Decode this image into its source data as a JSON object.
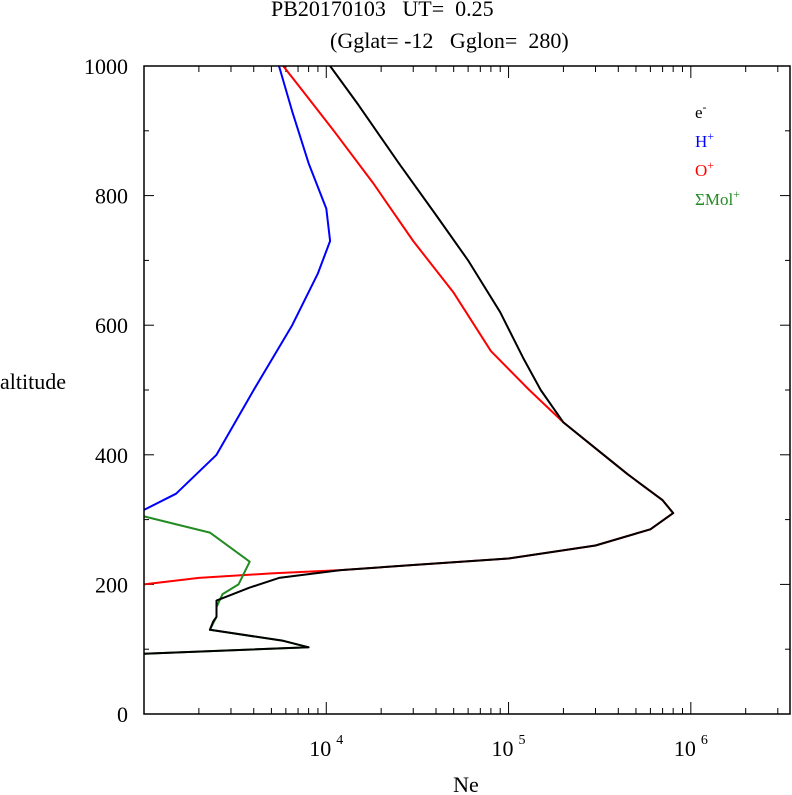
{
  "title": {
    "line1": "PB20170103   UT=  0.25",
    "line2": "(Gglat= -12   Gglon=  280)"
  },
  "chart_data": {
    "type": "line",
    "xlabel": "Ne",
    "ylabel": "altitude",
    "xscale": "log",
    "xlim": [
      1000,
      3500000
    ],
    "ylim": [
      0,
      1000
    ],
    "yticks": [
      0,
      200,
      400,
      600,
      800,
      1000
    ],
    "ytick_labels": [
      "0",
      "200",
      "400",
      "600",
      "800",
      "1000"
    ],
    "xticks": [
      {
        "value": 10000,
        "base": "10",
        "exp": "4"
      },
      {
        "value": 100000,
        "base": "10",
        "exp": "5"
      },
      {
        "value": 1000000,
        "base": "10",
        "exp": "6"
      }
    ],
    "legend_position": "top-right",
    "series": [
      {
        "name": "e-",
        "label": "e",
        "sup": "-",
        "color": "#000000",
        "points": [
          [
            1000,
            93
          ],
          [
            8000,
            103
          ],
          [
            5800,
            113
          ],
          [
            2300,
            130
          ],
          [
            2400,
            143
          ],
          [
            2500,
            150
          ],
          [
            2500,
            175
          ],
          [
            3800,
            195
          ],
          [
            5500,
            210
          ],
          [
            12000,
            222
          ],
          [
            30000,
            230
          ],
          [
            100000,
            240
          ],
          [
            300000,
            260
          ],
          [
            600000,
            285
          ],
          [
            800000,
            310
          ],
          [
            700000,
            330
          ],
          [
            450000,
            370
          ],
          [
            300000,
            410
          ],
          [
            200000,
            450
          ],
          [
            150000,
            500
          ],
          [
            120000,
            550
          ],
          [
            90000,
            620
          ],
          [
            60000,
            700
          ],
          [
            40000,
            770
          ],
          [
            25000,
            850
          ],
          [
            15000,
            940
          ],
          [
            10500,
            1000
          ]
        ]
      },
      {
        "name": "H+",
        "label": "H",
        "sup": "+",
        "color": "#0000ff",
        "points": [
          [
            1000,
            315
          ],
          [
            1500,
            340
          ],
          [
            2500,
            400
          ],
          [
            4000,
            500
          ],
          [
            6500,
            600
          ],
          [
            9000,
            680
          ],
          [
            10500,
            730
          ],
          [
            10000,
            780
          ],
          [
            8000,
            850
          ],
          [
            6500,
            930
          ],
          [
            5500,
            1000
          ]
        ]
      },
      {
        "name": "O+",
        "label": "O",
        "sup": "+",
        "color": "#ff0000",
        "points": [
          [
            1000,
            200
          ],
          [
            2000,
            210
          ],
          [
            5000,
            217
          ],
          [
            12000,
            222
          ],
          [
            30000,
            230
          ],
          [
            100000,
            240
          ],
          [
            300000,
            260
          ],
          [
            600000,
            285
          ],
          [
            800000,
            310
          ],
          [
            700000,
            330
          ],
          [
            450000,
            370
          ],
          [
            300000,
            410
          ],
          [
            200000,
            450
          ],
          [
            130000,
            500
          ],
          [
            80000,
            560
          ],
          [
            50000,
            650
          ],
          [
            30000,
            730
          ],
          [
            18000,
            820
          ],
          [
            11000,
            900
          ],
          [
            7500,
            960
          ],
          [
            5800,
            1000
          ]
        ]
      },
      {
        "name": "ΣMol+",
        "label": "ΣMol",
        "sup": "+",
        "color": "#228b22",
        "points": [
          [
            1000,
            305
          ],
          [
            2300,
            280
          ],
          [
            3800,
            235
          ],
          [
            3300,
            200
          ],
          [
            2700,
            185
          ],
          [
            2500,
            165
          ],
          [
            2500,
            150
          ],
          [
            2300,
            130
          ],
          [
            5800,
            113
          ],
          [
            8000,
            103
          ],
          [
            1000,
            93
          ]
        ]
      }
    ]
  }
}
